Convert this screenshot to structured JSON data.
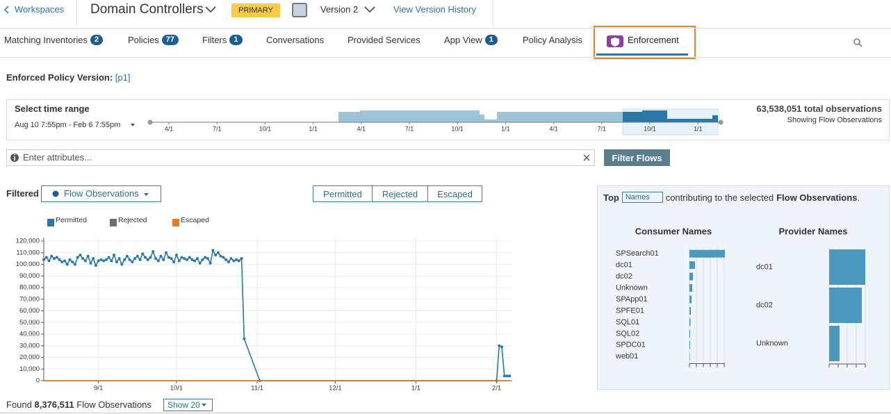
{
  "header": {
    "back": "Workspaces",
    "title": "Domain Controllers",
    "badge": "PRIMARY",
    "version": "Version 2",
    "history": "View Version History"
  },
  "tabs": [
    {
      "label": "Matching Inventories",
      "count": 2
    },
    {
      "label": "Policies",
      "count": 77
    },
    {
      "label": "Filters",
      "count": 1
    },
    {
      "label": "Conversations"
    },
    {
      "label": "Provided Services"
    },
    {
      "label": "App View",
      "count": 1
    },
    {
      "label": "Policy Analysis"
    },
    {
      "label": "Enforcement",
      "active": true
    }
  ],
  "enforced": {
    "label": "Enforced Policy Version:",
    "version": "[p1]"
  },
  "time_range": {
    "title": "Select time range",
    "range": "Aug 10 7:55pm - Feb 6 7:55pm",
    "ticks": [
      "4/1",
      "7/1",
      "10/1",
      "1/1",
      "4/1",
      "7/1",
      "10/1",
      "1/1",
      "4/1",
      "7/1",
      "10/1",
      "1/1"
    ],
    "total": "63,538,051 total observations",
    "showing": "Showing Flow Observations"
  },
  "filter": {
    "placeholder": "Enter attributes...",
    "button": "Filter Flows"
  },
  "controls": {
    "label": "Filtered",
    "metric": "Flow Observations",
    "buttons": [
      "Permitted",
      "Rejected",
      "Escaped"
    ]
  },
  "flow_chart": {
    "type": "line",
    "grid": true,
    "xlim": [
      "8/11",
      "2/7"
    ],
    "xticks": [
      "9/1",
      "10/1",
      "11/1",
      "12/1",
      "1/1",
      "2/1"
    ],
    "ylim": [
      0,
      123000
    ],
    "yticks": [
      {
        "value": 0,
        "label": "0"
      },
      {
        "value": 10000,
        "label": "10,000"
      },
      {
        "value": 20000,
        "label": "20,000"
      },
      {
        "value": 30000,
        "label": "30,000"
      },
      {
        "value": 40000,
        "label": "40,000"
      },
      {
        "value": 50000,
        "label": "50,000"
      },
      {
        "value": 60000,
        "label": "60,000"
      },
      {
        "value": 70000,
        "label": "70,000"
      },
      {
        "value": 80000,
        "label": "80,000"
      },
      {
        "value": 90000,
        "label": "90,000"
      },
      {
        "value": 100000,
        "label": "100,000"
      },
      {
        "value": 110000,
        "label": "110,000"
      },
      {
        "value": 120000,
        "label": "120,000"
      }
    ],
    "series": [
      {
        "name": "Permitted",
        "color": "#2878a8",
        "markers": true,
        "x": [
          "8/11",
          "8/12",
          "8/13",
          "8/14",
          "8/15",
          "8/16",
          "8/17",
          "8/18",
          "8/19",
          "8/20",
          "8/21",
          "8/22",
          "8/23",
          "8/24",
          "8/25",
          "8/26",
          "8/27",
          "8/28",
          "8/29",
          "8/30",
          "8/31",
          "9/1",
          "9/2",
          "9/3",
          "9/4",
          "9/5",
          "9/6",
          "9/7",
          "9/8",
          "9/9",
          "9/10",
          "9/11",
          "9/12",
          "9/13",
          "9/14",
          "9/15",
          "9/16",
          "9/17",
          "9/18",
          "9/19",
          "9/20",
          "9/21",
          "9/22",
          "9/23",
          "9/24",
          "9/25",
          "9/26",
          "9/27",
          "9/28",
          "9/29",
          "9/30",
          "10/1",
          "10/2",
          "10/3",
          "10/4",
          "10/5",
          "10/6",
          "10/7",
          "10/8",
          "10/9",
          "10/10",
          "10/11",
          "10/12",
          "10/13",
          "10/14",
          "10/15",
          "10/16",
          "10/17",
          "10/18",
          "10/19",
          "10/20",
          "10/21",
          "10/22",
          "10/23",
          "10/24",
          "10/25",
          "10/26",
          "10/27",
          "11/2",
          "2/1",
          "2/2",
          "2/3",
          "2/4",
          "2/5",
          "2/6"
        ],
        "values": [
          104000,
          106000,
          103000,
          107000,
          105000,
          106000,
          104000,
          102000,
          103000,
          100000,
          104000,
          102000,
          100000,
          106000,
          108000,
          105000,
          103000,
          107000,
          101000,
          105000,
          99000,
          103000,
          104000,
          103000,
          104000,
          106000,
          103000,
          108000,
          102000,
          105000,
          100000,
          104000,
          107000,
          104000,
          102000,
          105000,
          107000,
          104000,
          109000,
          106000,
          104000,
          106000,
          111000,
          105000,
          103000,
          107000,
          104000,
          110000,
          106000,
          105000,
          102000,
          108000,
          103000,
          106000,
          105000,
          104000,
          106000,
          104000,
          103000,
          105000,
          101000,
          104000,
          106000,
          105000,
          101000,
          112000,
          108000,
          110000,
          107000,
          106000,
          104000,
          102000,
          105000,
          103000,
          104000,
          103000,
          105000,
          36000,
          0,
          0,
          30000,
          29000,
          4000,
          4000,
          4000
        ]
      },
      {
        "name": "Rejected",
        "color": "#6e6e6e",
        "x": [
          "8/11",
          "2/6"
        ],
        "values": [
          0,
          0
        ]
      },
      {
        "name": "Escaped",
        "color": "#f07818",
        "x": [
          "8/11",
          "2/6"
        ],
        "values": [
          0,
          0
        ]
      }
    ]
  },
  "top_panel": {
    "prefix": "Top",
    "selector": "Names",
    "middle": "contributing to the selected",
    "metric": "Flow Observations",
    "suffix": ".",
    "consumer": {
      "type": "barh",
      "title": "Consumer Names",
      "color": "#4a98bc",
      "categories": [
        "SPSearch01",
        "dc01",
        "dc02",
        "Unknown",
        "SPApp01",
        "SPFE01",
        "SQL01",
        "SQL02",
        "SPDC01",
        "web01"
      ],
      "values": [
        51,
        8,
        5,
        4,
        3,
        2,
        1.5,
        1,
        1,
        0.5
      ],
      "xlim": [
        0,
        51
      ],
      "xticks": [
        0,
        10,
        20,
        30,
        40,
        50
      ]
    },
    "provider": {
      "type": "barh",
      "title": "Provider Names",
      "color": "#4a98bc",
      "categories": [
        "dc01",
        "dc02",
        "Unknown"
      ],
      "values": [
        52,
        47,
        15
      ],
      "xlim": [
        0,
        52
      ],
      "xticks": [
        0,
        13,
        26,
        39,
        52
      ]
    }
  },
  "footer": {
    "prefix": "Found",
    "count": "8,376,511",
    "metric": "Flow Observations",
    "show": "Show 20"
  }
}
